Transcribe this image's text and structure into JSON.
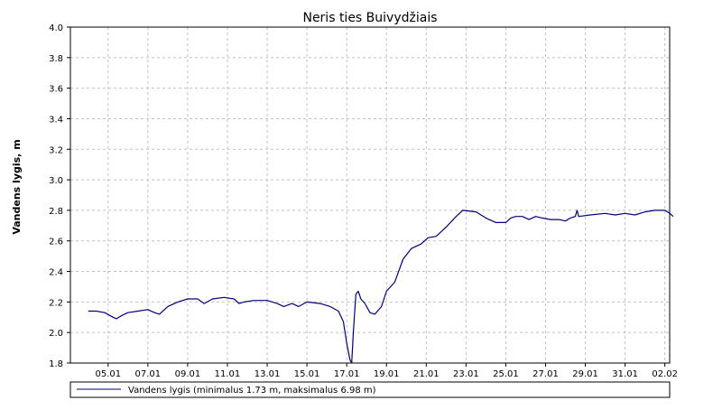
{
  "chart_data": {
    "type": "line",
    "title": "Neris ties Buivydžiais",
    "xlabel": "",
    "ylabel": "Vandens lygis, m",
    "x_domain": [
      "04.01",
      "02.02"
    ],
    "x_ticks": [
      "05.01",
      "07.01",
      "09.01",
      "11.01",
      "13.01",
      "15.01",
      "17.01",
      "19.01",
      "21.01",
      "23.01",
      "25.01",
      "27.01",
      "29.01",
      "31.01",
      "02.02"
    ],
    "y_ticks": [
      "1.8",
      "2.0",
      "2.2",
      "2.4",
      "2.6",
      "2.8",
      "3.0",
      "3.2",
      "3.4",
      "3.6",
      "3.8",
      "4.0"
    ],
    "ylim": [
      1.8,
      4.0
    ],
    "grid": true,
    "legend_position": "bottom",
    "colors": {
      "series": "#00007f",
      "grid": "#c0c0c0",
      "axis": "#000000"
    },
    "series": [
      {
        "name": "Vandens lygis (minimalus 1.73 m, maksimalus 6.98 m)",
        "points": [
          [
            "04.01 00:00",
            2.14
          ],
          [
            "04.01 10:00",
            2.14
          ],
          [
            "04.01 20:00",
            2.13
          ],
          [
            "05.01 06:00",
            2.1
          ],
          [
            "05.01 10:00",
            2.09
          ],
          [
            "05.01 16:00",
            2.11
          ],
          [
            "06.01 00:00",
            2.13
          ],
          [
            "06.01 12:00",
            2.14
          ],
          [
            "07.01 00:00",
            2.15
          ],
          [
            "07.01 08:00",
            2.13
          ],
          [
            "07.01 14:00",
            2.12
          ],
          [
            "08.01 00:00",
            2.17
          ],
          [
            "08.01 12:00",
            2.2
          ],
          [
            "09.01 00:00",
            2.22
          ],
          [
            "09.01 12:00",
            2.22
          ],
          [
            "09.01 20:00",
            2.19
          ],
          [
            "10.01 06:00",
            2.22
          ],
          [
            "10.01 20:00",
            2.23
          ],
          [
            "11.01 08:00",
            2.22
          ],
          [
            "11.01 14:00",
            2.19
          ],
          [
            "11.01 20:00",
            2.2
          ],
          [
            "12.01 08:00",
            2.21
          ],
          [
            "13.01 00:00",
            2.21
          ],
          [
            "13.01 12:00",
            2.19
          ],
          [
            "13.01 20:00",
            2.17
          ],
          [
            "14.01 06:00",
            2.19
          ],
          [
            "14.01 14:00",
            2.17
          ],
          [
            "15.01 00:00",
            2.2
          ],
          [
            "15.01 16:00",
            2.19
          ],
          [
            "16.01 04:00",
            2.17
          ],
          [
            "16.01 14:00",
            2.14
          ],
          [
            "16.01 20:00",
            2.07
          ],
          [
            "17.01 00:00",
            1.93
          ],
          [
            "17.01 04:00",
            1.82
          ],
          [
            "17.01 06:00",
            1.8
          ],
          [
            "17.01 08:00",
            2.0
          ],
          [
            "17.01 11:00",
            2.25
          ],
          [
            "17.01 14:00",
            2.27
          ],
          [
            "17.01 17:00",
            2.22
          ],
          [
            "17.01 22:00",
            2.19
          ],
          [
            "18.01 04:00",
            2.13
          ],
          [
            "18.01 10:00",
            2.12
          ],
          [
            "18.01 18:00",
            2.17
          ],
          [
            "19.01 00:00",
            2.27
          ],
          [
            "19.01 10:00",
            2.33
          ],
          [
            "19.01 20:00",
            2.48
          ],
          [
            "20.01 06:00",
            2.55
          ],
          [
            "20.01 18:00",
            2.58
          ],
          [
            "21.01 02:00",
            2.62
          ],
          [
            "21.01 12:00",
            2.63
          ],
          [
            "22.01 00:00",
            2.69
          ],
          [
            "22.01 12:00",
            2.76
          ],
          [
            "22.01 20:00",
            2.8
          ],
          [
            "23.01 12:00",
            2.79
          ],
          [
            "24.01 00:00",
            2.75
          ],
          [
            "24.01 12:00",
            2.72
          ],
          [
            "25.01 00:00",
            2.72
          ],
          [
            "25.01 06:00",
            2.75
          ],
          [
            "25.01 12:00",
            2.76
          ],
          [
            "25.01 20:00",
            2.76
          ],
          [
            "26.01 04:00",
            2.74
          ],
          [
            "26.01 12:00",
            2.76
          ],
          [
            "26.01 20:00",
            2.75
          ],
          [
            "27.01 06:00",
            2.74
          ],
          [
            "27.01 16:00",
            2.74
          ],
          [
            "28.01 00:00",
            2.73
          ],
          [
            "28.01 06:00",
            2.75
          ],
          [
            "28.01 12:00",
            2.76
          ],
          [
            "28.01 14:00",
            2.8
          ],
          [
            "28.01 16:00",
            2.76
          ],
          [
            "29.01 06:00",
            2.77
          ],
          [
            "30.01 00:00",
            2.78
          ],
          [
            "30.01 12:00",
            2.77
          ],
          [
            "31.01 00:00",
            2.78
          ],
          [
            "31.01 12:00",
            2.77
          ],
          [
            "01.02 00:00",
            2.79
          ],
          [
            "01.02 12:00",
            2.8
          ],
          [
            "02.02 00:00",
            2.8
          ],
          [
            "02.02 06:00",
            2.78
          ],
          [
            "02.02 10:00",
            2.76
          ]
        ]
      }
    ]
  }
}
